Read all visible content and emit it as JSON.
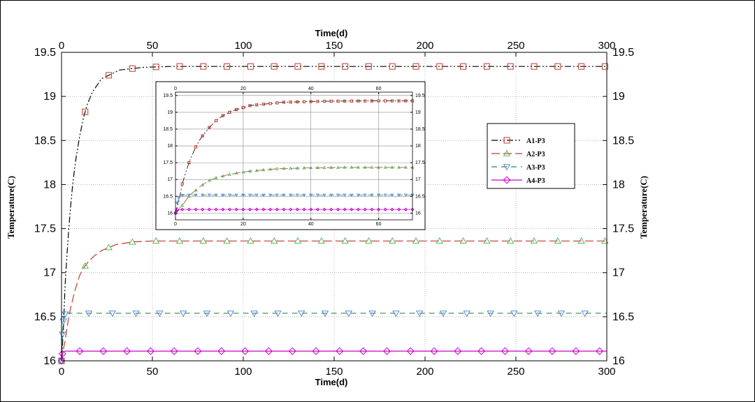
{
  "chart_data": [
    {
      "type": "line",
      "title": "",
      "xlabel": "Time(d)",
      "ylabel": "Temperature(C)",
      "xlim": [
        0,
        300
      ],
      "ylim": [
        16,
        19.5
      ],
      "x_ticks": [
        "0",
        "50",
        "100",
        "150",
        "200",
        "250",
        "300"
      ],
      "y_ticks": [
        "16",
        "16.5",
        "17",
        "17.5",
        "18",
        "18.5",
        "19",
        "19.5"
      ],
      "grid": true,
      "legend_position": "right",
      "series": [
        {
          "name": "A1-P3",
          "color": "#000000",
          "marker_color": "#c0392b",
          "marker": "square",
          "dash": "dash-dot-dot",
          "x": [
            0,
            1,
            2,
            3,
            4,
            5,
            6,
            7,
            8,
            10,
            12,
            14,
            17,
            22,
            32,
            45,
            60,
            100,
            150,
            200,
            250,
            300
          ],
          "y": [
            16.0,
            16.35,
            16.87,
            17.2,
            17.5,
            17.75,
            17.97,
            18.15,
            18.3,
            18.55,
            18.75,
            18.9,
            19.05,
            19.2,
            19.3,
            19.33,
            19.34,
            19.34,
            19.34,
            19.34,
            19.34,
            19.34
          ]
        },
        {
          "name": "A2-P3",
          "color": "#c0392b",
          "marker_color": "#5cb85c",
          "marker": "triangle",
          "dash": "long-dash",
          "x": [
            0,
            1,
            2,
            3,
            4,
            5,
            6,
            7,
            8,
            10,
            12,
            15,
            18,
            22,
            30,
            40,
            50,
            100,
            150,
            200,
            250,
            300
          ],
          "y": [
            16.0,
            16.13,
            16.23,
            16.37,
            16.5,
            16.6,
            16.68,
            16.77,
            16.84,
            16.97,
            17.05,
            17.13,
            17.19,
            17.25,
            17.32,
            17.35,
            17.36,
            17.36,
            17.36,
            17.36,
            17.36,
            17.36
          ]
        },
        {
          "name": "A3-P3",
          "color": "#2e8b57",
          "marker_color": "#5b8bd9",
          "marker": "triangle-down",
          "dash": "dash",
          "x": [
            0,
            0.5,
            1,
            2,
            3,
            4,
            6,
            10,
            20,
            50,
            100,
            150,
            200,
            250,
            300
          ],
          "y": [
            16.0,
            16.3,
            16.45,
            16.53,
            16.54,
            16.54,
            16.54,
            16.54,
            16.54,
            16.54,
            16.54,
            16.54,
            16.54,
            16.54,
            16.54
          ]
        },
        {
          "name": "A4-P3",
          "color": "#cc00cc",
          "marker_color": "#cc00cc",
          "marker": "diamond",
          "dash": "solid",
          "x": [
            0,
            0.5,
            1,
            2,
            3,
            5,
            10,
            50,
            100,
            150,
            200,
            250,
            300
          ],
          "y": [
            16.0,
            16.08,
            16.1,
            16.11,
            16.11,
            16.11,
            16.11,
            16.11,
            16.11,
            16.11,
            16.11,
            16.11,
            16.11
          ]
        }
      ]
    },
    {
      "type": "line",
      "title": "",
      "xlabel": "",
      "ylabel": "",
      "xlim": [
        0,
        70
      ],
      "ylim": [
        15.8,
        19.6
      ],
      "x_ticks": [
        "0",
        "20",
        "40",
        "60"
      ],
      "y_ticks": [
        "16",
        "16.5",
        "17",
        "17.5",
        "18",
        "18.5",
        "19",
        "19.5"
      ],
      "grid": true,
      "series_ref": [
        "A1-P3",
        "A2-P3",
        "A3-P3",
        "A4-P3"
      ]
    }
  ]
}
